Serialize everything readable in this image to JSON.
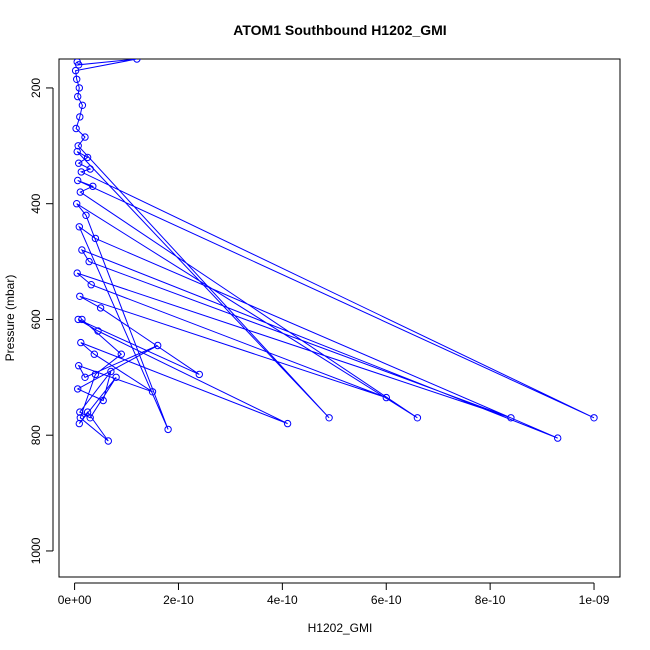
{
  "chart_data": {
    "type": "line",
    "title": "ATOM1 Southbound H1202_GMI",
    "xlabel": "H1202_GMI",
    "ylabel": "Pressure (mbar)",
    "xlim": [
      -3e-11,
      1.05e-09
    ],
    "ylim": [
      1045,
      150
    ],
    "y_reversed": true,
    "grid": false,
    "legend": "none",
    "line_color": "#0000ff",
    "marker": "open-circle",
    "x_ticks": [
      {
        "value": 0,
        "label": "0e+00"
      },
      {
        "value": 2e-10,
        "label": "2e-10"
      },
      {
        "value": 4e-10,
        "label": "4e-10"
      },
      {
        "value": 6e-10,
        "label": "6e-10"
      },
      {
        "value": 8e-10,
        "label": "8e-10"
      },
      {
        "value": 1e-09,
        "label": "1e-09"
      }
    ],
    "y_ticks": [
      {
        "value": 200,
        "label": "200"
      },
      {
        "value": 400,
        "label": "400"
      },
      {
        "value": 600,
        "label": "600"
      },
      {
        "value": 800,
        "label": "800"
      },
      {
        "value": 1000,
        "label": "1000"
      }
    ],
    "series": [
      {
        "x": [
          5e-12,
          8e-12,
          1.2e-10,
          2e-12,
          4e-12,
          9e-12,
          6e-12,
          1.5e-11,
          1e-11,
          3e-12,
          2e-11,
          7e-12,
          4.9e-10,
          5e-12,
          2.5e-11,
          8e-12,
          3e-11,
          1.3e-11,
          1e-09,
          6e-12,
          3.5e-11,
          1.1e-11,
          6.6e-10,
          4e-12,
          2.2e-11,
          1.8e-10,
          9e-12,
          4e-11,
          9.3e-10,
          1.4e-11,
          2.8e-11,
          8.4e-10,
          5e-12,
          3.2e-11,
          6e-10,
          1e-11,
          5e-11,
          2.4e-10,
          7e-12,
          4.5e-11,
          4.1e-10,
          1.2e-11,
          3.8e-11,
          1.5e-10,
          8e-12,
          2e-11,
          1.6e-10,
          6e-12,
          5.5e-11,
          7e-11,
          1e-11,
          3e-11,
          8e-11,
          9e-12,
          2.5e-11,
          6.5e-11,
          1.1e-11,
          4e-11,
          9e-11,
          1.4e-11
        ],
        "y": [
          155,
          160,
          150,
          170,
          185,
          200,
          215,
          230,
          250,
          270,
          285,
          300,
          770,
          310,
          320,
          330,
          340,
          345,
          770,
          360,
          370,
          380,
          770,
          400,
          420,
          790,
          440,
          460,
          805,
          480,
          500,
          770,
          520,
          540,
          735,
          560,
          580,
          695,
          600,
          620,
          780,
          640,
          660,
          725,
          680,
          700,
          645,
          720,
          740,
          690,
          760,
          770,
          700,
          780,
          760,
          810,
          770,
          695,
          660,
          600
        ]
      }
    ]
  }
}
